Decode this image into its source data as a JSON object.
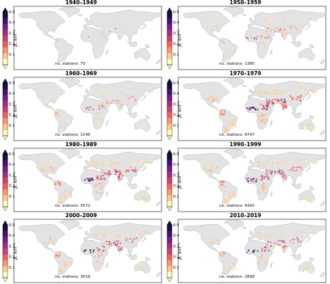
{
  "colorbar": {
    "label": "β, km⁻¹",
    "ticks": [
      "0.5",
      "0.4",
      "0.3",
      "0.2",
      "0.1"
    ],
    "range": [
      0.0,
      0.5
    ],
    "colors": [
      "#fcfdbf",
      "#fec98d",
      "#fd9668",
      "#f1605d",
      "#cd4071",
      "#9e2f7f",
      "#721f81",
      "#440f76",
      "#180f3d"
    ]
  },
  "station_label": "no. stations:",
  "panels": [
    {
      "title": "1940–1949",
      "stations": "75"
    },
    {
      "title": "1950–1959",
      "stations": "1360"
    },
    {
      "title": "1960–1969",
      "stations": "1146"
    },
    {
      "title": "1970–1979",
      "stations": "6747"
    },
    {
      "title": "1980–1989",
      "stations": "5572"
    },
    {
      "title": "1990–1999",
      "stations": "4342"
    },
    {
      "title": "2000–2009",
      "stations": "3019"
    },
    {
      "title": "2010–2019",
      "stations": "2899"
    }
  ]
}
